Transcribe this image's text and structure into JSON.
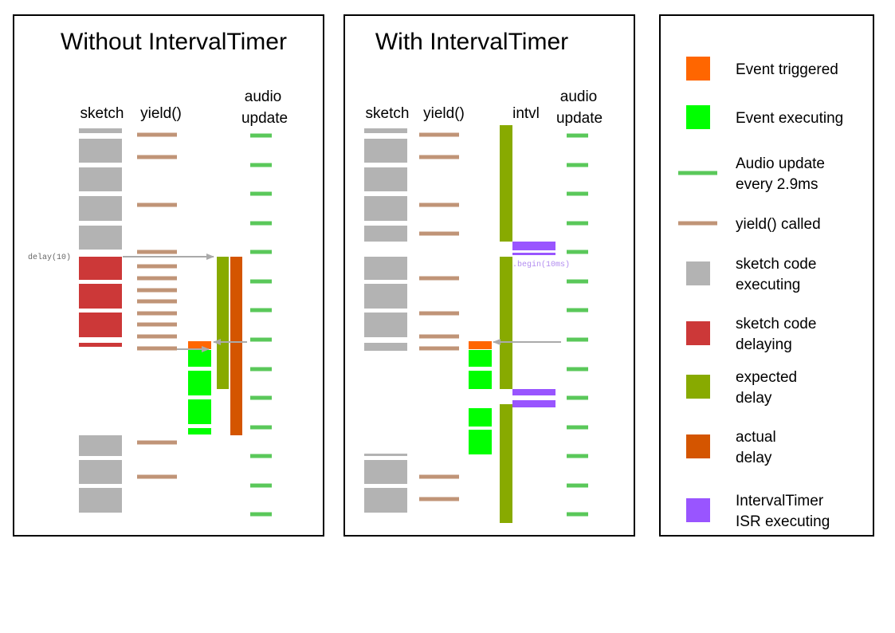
{
  "colors": {
    "sketch": "#b3b3b3",
    "delaying": "#cc3838",
    "yield": "#c09477",
    "audio": "#5ac85a",
    "triggered": "#ff6600",
    "executing": "#00ff00",
    "expected": "#88aa00",
    "actual": "#d45500",
    "isr": "#9955ff",
    "arrow": "#aaaaaa",
    "frame": "#000000"
  },
  "panel_without": {
    "title": "Without IntervalTimer",
    "col_sketch": "sketch",
    "col_yield": "yield()",
    "col_audio_1": "audio",
    "col_audio_2": "update",
    "delay_call": "delay(10)"
  },
  "panel_with": {
    "title": "With IntervalTimer",
    "col_sketch": "sketch",
    "col_yield": "yield()",
    "col_intvl": "intvl",
    "col_audio_1": "audio",
    "col_audio_2": "update",
    "begin_call": ".begin(10ms)"
  },
  "legend": [
    {
      "key": "event-triggered",
      "lines": [
        "Event triggered"
      ],
      "swatch": "square",
      "color": "#ff6600"
    },
    {
      "key": "event-executing",
      "lines": [
        "Event executing"
      ],
      "swatch": "square",
      "color": "#00ff00"
    },
    {
      "key": "audio-update",
      "lines": [
        "Audio update",
        "every 2.9ms"
      ],
      "swatch": "line",
      "color": "#5ac85a"
    },
    {
      "key": "yield-called",
      "lines": [
        "yield() called"
      ],
      "swatch": "line",
      "color": "#c09477"
    },
    {
      "key": "sketch-executing",
      "lines": [
        "sketch code",
        "executing"
      ],
      "swatch": "square",
      "color": "#b3b3b3"
    },
    {
      "key": "sketch-delaying",
      "lines": [
        "sketch code",
        "delaying"
      ],
      "swatch": "square",
      "color": "#cc3838"
    },
    {
      "key": "expected-delay",
      "lines": [
        "expected",
        "delay"
      ],
      "swatch": "square",
      "color": "#88aa00"
    },
    {
      "key": "actual-delay",
      "lines": [
        "actual",
        "delay"
      ],
      "swatch": "square",
      "color": "#d45500"
    },
    {
      "key": "isr-executing",
      "lines": [
        "IntervalTimer",
        "ISR executing"
      ],
      "swatch": "square",
      "color": "#9955ff"
    }
  ]
}
